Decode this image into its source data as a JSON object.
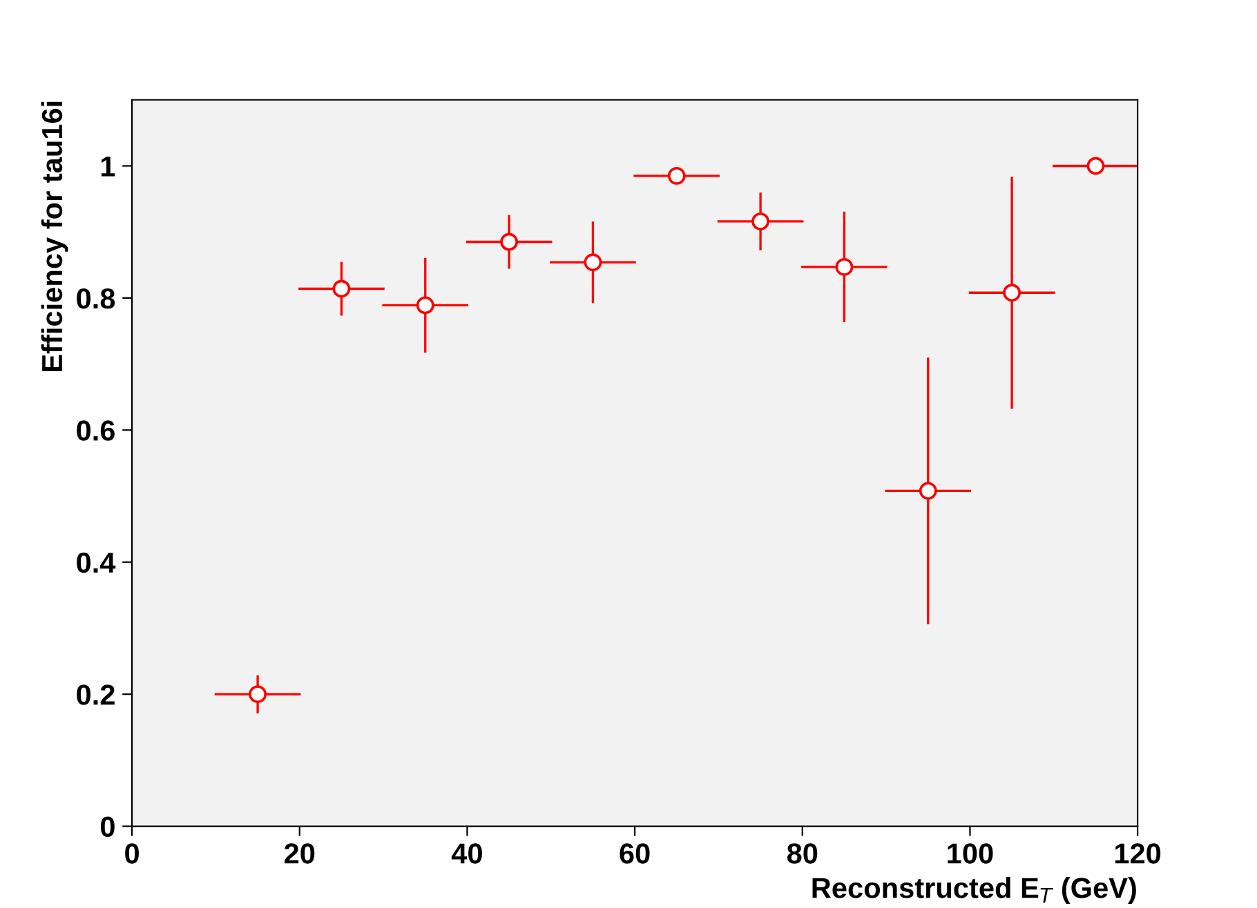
{
  "chart_data": {
    "type": "scatter",
    "xlabel": "Reconstructed E$_{T}$ (GeV)",
    "ylabel": "Efficiency for tau16i",
    "x": [
      15,
      25,
      35,
      45,
      55,
      65,
      75,
      85,
      95,
      105,
      115
    ],
    "series": [
      {
        "color": "#ff0000",
        "values": [
          0.2,
          0.814,
          0.789,
          0.885,
          0.854,
          0.985,
          0.916,
          0.847,
          0.508,
          0.808,
          1.0
        ],
        "errors": [
          0.027,
          0.039,
          0.07,
          0.039,
          0.06,
          null,
          0.042,
          0.082,
          0.2,
          0.174,
          null
        ],
        "xerrors": [
          5,
          5,
          5,
          5,
          5,
          5,
          5,
          5,
          5,
          5,
          5
        ]
      }
    ],
    "marker": "circle",
    "xlim": [
      0,
      120
    ],
    "ylim": [
      0,
      1.1
    ],
    "xticks": [
      0,
      20,
      40,
      60,
      80,
      100,
      120
    ],
    "yticks": [
      0,
      0.2,
      0.4,
      0.6,
      0.8,
      1
    ],
    "grid": false,
    "legend": false
  }
}
